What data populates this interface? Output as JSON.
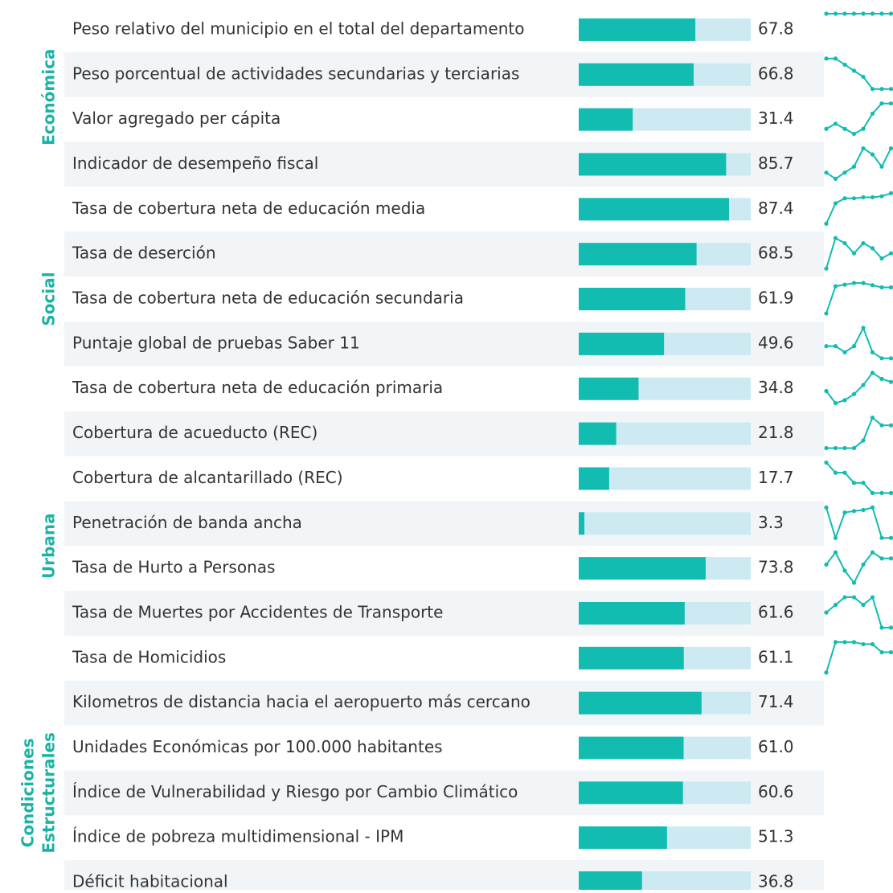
{
  "xlim": [
    0,
    100
  ],
  "bar_color": "#12bcb0",
  "track_color": "#cdeaf3",
  "group_color": "#1cb3a6",
  "groups": [
    {
      "name": [
        "Económica"
      ],
      "rows": [
        {
          "label": "Peso relativo del municipio en el total del departamento",
          "value": 67.8,
          "trend": [
            5,
            5,
            5,
            5,
            5,
            5,
            5,
            5
          ]
        },
        {
          "label": "Peso porcentual de actividades secundarias y terciarias",
          "value": 66.8,
          "trend": [
            6,
            6,
            5.8,
            5.6,
            5.4,
            5,
            5,
            5
          ]
        },
        {
          "label": "Valor agregado per cápita",
          "value": 31.4,
          "trend": [
            5,
            5.2,
            5,
            4.8,
            5,
            5.6,
            6,
            6
          ]
        },
        {
          "label": "Indicador de desempeño fiscal",
          "value": 85.7,
          "trend": [
            1,
            0,
            1,
            2,
            5,
            4,
            2,
            5
          ]
        }
      ]
    },
    {
      "name": [
        "Social"
      ],
      "rows": [
        {
          "label": "Tasa de cobertura neta de educación media",
          "value": 87.4,
          "trend": [
            0,
            4,
            5,
            5,
            5.2,
            5.2,
            5.4,
            6
          ]
        },
        {
          "label": "Tasa de deserción",
          "value": 68.5,
          "trend": [
            0,
            6,
            5,
            3,
            5,
            4,
            2,
            3
          ]
        },
        {
          "label": "Tasa de cobertura neta de educación secundaria",
          "value": 61.9,
          "trend": [
            0,
            5,
            5.3,
            5.6,
            5.6,
            5.2,
            4.8,
            4.8
          ]
        },
        {
          "label": "Puntaje global de pruebas Saber 11",
          "value": 49.6,
          "trend": [
            5,
            5,
            4.8,
            5,
            5.6,
            4.8,
            4.6,
            4.6
          ]
        },
        {
          "label": "Tasa de cobertura neta de educación primaria",
          "value": 34.8,
          "trend": [
            3,
            1,
            1.5,
            2.5,
            4,
            6,
            5,
            4.5
          ]
        }
      ]
    },
    {
      "name": [
        "Urbana"
      ],
      "rows": [
        {
          "label": "Cobertura de acueducto (REC)",
          "value": 21.8,
          "trend": [
            1,
            1,
            1,
            1,
            2,
            5,
            4,
            4
          ]
        },
        {
          "label": "Cobertura de alcantarillado (REC)",
          "value": 17.7,
          "trend": [
            6,
            5.5,
            5.5,
            5,
            5,
            4.5,
            4.5,
            4.5
          ]
        },
        {
          "label": "Penetración de banda ancha",
          "value": 3.3,
          "trend": [
            6,
            0,
            5,
            5.3,
            5.5,
            6,
            0,
            0
          ]
        },
        {
          "label": "Tasa de Hurto a Personas",
          "value": 73.8,
          "trend": [
            3,
            5,
            2,
            0,
            3,
            5,
            4,
            4
          ]
        },
        {
          "label": "Tasa de Muertes por Accidentes de Transporte",
          "value": 61.6,
          "trend": [
            4,
            4.5,
            5,
            5,
            4.5,
            5,
            3,
            3
          ]
        },
        {
          "label": "Tasa de Homicidios",
          "value": 61.1,
          "trend": [
            0,
            6,
            6,
            6,
            5.6,
            5.6,
            4,
            4
          ]
        }
      ]
    },
    {
      "name": [
        "Condiciones",
        "Estructurales"
      ],
      "rows": [
        {
          "label": "Kilometros de distancia hacia el aeropuerto más cercano",
          "value": 71.4
        },
        {
          "label": "Unidades Económicas por 100.000 habitantes",
          "value": 61.0,
          "value_label": "61.0"
        },
        {
          "label": "Índice de Vulnerabilidad y Riesgo por Cambio Climático",
          "value": 60.6
        },
        {
          "label": "Índice de pobreza multidimensional - IPM",
          "value": 51.3
        },
        {
          "label": "Déficit habitacional",
          "value": 36.8
        }
      ]
    }
  ]
}
